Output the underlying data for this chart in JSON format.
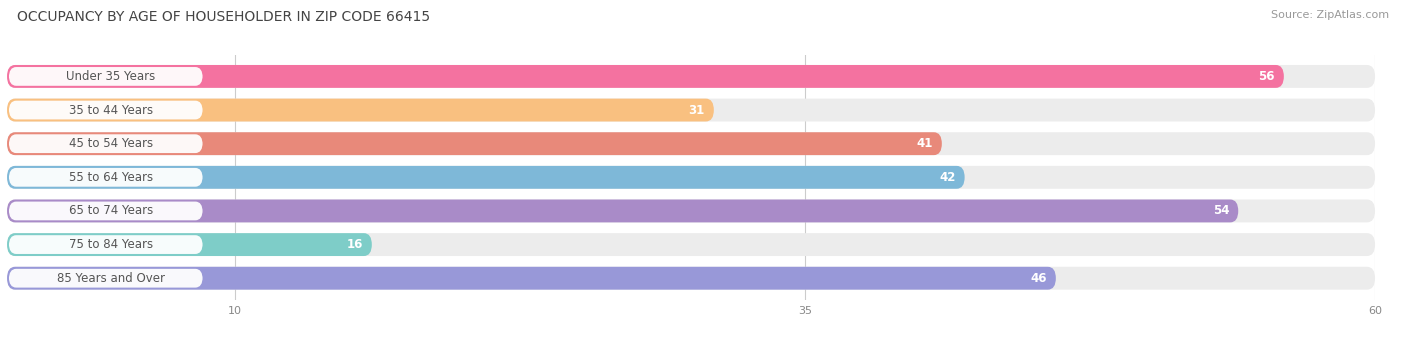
{
  "title": "OCCUPANCY BY AGE OF HOUSEHOLDER IN ZIP CODE 66415",
  "source": "Source: ZipAtlas.com",
  "categories": [
    "Under 35 Years",
    "35 to 44 Years",
    "45 to 54 Years",
    "55 to 64 Years",
    "65 to 74 Years",
    "75 to 84 Years",
    "85 Years and Over"
  ],
  "values": [
    56,
    31,
    41,
    42,
    54,
    16,
    46
  ],
  "bar_colors": [
    "#F472A0",
    "#F9C080",
    "#E8897A",
    "#7EB8D8",
    "#A98BC8",
    "#7ECDC8",
    "#9898D8"
  ],
  "xlim": [
    0,
    60
  ],
  "xticks": [
    10,
    35,
    60
  ],
  "bg_color": "#ffffff",
  "track_color": "#ececec",
  "label_pill_color": "#ffffff",
  "label_text_color": "#555555",
  "value_text_color": "#ffffff",
  "title_fontsize": 10,
  "source_fontsize": 8,
  "label_fontsize": 8.5,
  "value_fontsize": 8.5
}
